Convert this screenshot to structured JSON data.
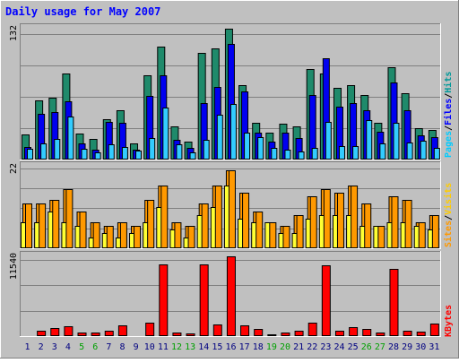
{
  "chart_data": [
    {
      "type": "bar",
      "panel": "hits-files-pages",
      "title": "Daily usage for May 2007",
      "ymax_label": "132",
      "ylim": [
        0,
        132
      ],
      "grid": true,
      "legend": [
        "Pages",
        "Files",
        "Hits"
      ],
      "categories": [
        "1",
        "2",
        "3",
        "4",
        "5",
        "6",
        "7",
        "8",
        "9",
        "10",
        "11",
        "12",
        "13",
        "14",
        "15",
        "16",
        "17",
        "18",
        "19",
        "20",
        "21",
        "22",
        "23",
        "24",
        "25",
        "26",
        "27",
        "28",
        "29",
        "30",
        "31"
      ],
      "series": [
        {
          "name": "Hits",
          "color": "#1f8a6b",
          "values": [
            25,
            60,
            62,
            87,
            26,
            21,
            41,
            50,
            16,
            85,
            114,
            33,
            18,
            108,
            112,
            132,
            75,
            37,
            27,
            36,
            33,
            91,
            87,
            72,
            75,
            65,
            37,
            93,
            67,
            32,
            30
          ]
        },
        {
          "name": "Files",
          "color": "#0000f0",
          "values": [
            13,
            46,
            48,
            59,
            16,
            10,
            38,
            37,
            10,
            64,
            85,
            20,
            12,
            57,
            73,
            117,
            69,
            27,
            18,
            27,
            22,
            65,
            102,
            53,
            57,
            50,
            28,
            78,
            50,
            24,
            23
          ]
        },
        {
          "name": "Pages",
          "color": "#33ccff",
          "values": [
            11,
            16,
            21,
            43,
            11,
            7,
            15,
            13,
            9,
            22,
            52,
            15,
            7,
            20,
            45,
            56,
            27,
            23,
            12,
            10,
            8,
            12,
            38,
            14,
            14,
            40,
            16,
            37,
            17,
            19,
            12
          ]
        }
      ]
    },
    {
      "type": "bar",
      "panel": "visits-sites",
      "ymax_label": "22",
      "ylim": [
        0,
        22
      ],
      "grid": true,
      "legend": [
        "Sites",
        "Visits"
      ],
      "categories": [
        "1",
        "2",
        "3",
        "4",
        "5",
        "6",
        "7",
        "8",
        "9",
        "10",
        "11",
        "12",
        "13",
        "14",
        "15",
        "16",
        "17",
        "18",
        "19",
        "20",
        "21",
        "22",
        "23",
        "24",
        "25",
        "26",
        "27",
        "28",
        "29",
        "30",
        "31"
      ],
      "series": [
        {
          "name": "Visits",
          "color": "#ff9900",
          "values": [
            12,
            12,
            13,
            16,
            10,
            7,
            6,
            7,
            6,
            13,
            17,
            7,
            6,
            12,
            17,
            21,
            15,
            10,
            7,
            6,
            9,
            14,
            16,
            15,
            17,
            12,
            6,
            14,
            13,
            7,
            9
          ]
        },
        {
          "name": "Sites",
          "color": "#ffff33",
          "values": [
            7,
            7,
            10,
            7,
            6,
            3,
            4,
            3,
            4,
            7,
            11,
            5,
            3,
            9,
            11,
            17,
            8,
            7,
            7,
            4,
            4,
            8,
            9,
            9,
            9,
            6,
            6,
            7,
            7,
            6,
            5
          ]
        }
      ]
    },
    {
      "type": "bar",
      "panel": "kbytes",
      "ymax_label": "11540",
      "ylim": [
        0,
        11540
      ],
      "grid": true,
      "legend": [
        "KBytes"
      ],
      "categories": [
        "1",
        "2",
        "3",
        "4",
        "5",
        "6",
        "7",
        "8",
        "9",
        "10",
        "11",
        "12",
        "13",
        "14",
        "15",
        "16",
        "17",
        "18",
        "19",
        "20",
        "21",
        "22",
        "23",
        "24",
        "25",
        "26",
        "27",
        "28",
        "29",
        "30",
        "31"
      ],
      "series": [
        {
          "name": "KBytes",
          "color": "#ff0000",
          "values": [
            150,
            760,
            1200,
            1400,
            470,
            550,
            800,
            1570,
            150,
            2000,
            10400,
            490,
            380,
            10340,
            1640,
            11540,
            1570,
            1030,
            300,
            480,
            770,
            1920,
            10300,
            800,
            1330,
            1010,
            470,
            9730,
            790,
            700,
            1840
          ]
        }
      ]
    }
  ],
  "x_axis": {
    "days": [
      "1",
      "2",
      "3",
      "4",
      "5",
      "6",
      "7",
      "8",
      "9",
      "10",
      "11",
      "12",
      "13",
      "14",
      "15",
      "16",
      "17",
      "18",
      "19",
      "20",
      "21",
      "22",
      "23",
      "24",
      "25",
      "26",
      "27",
      "28",
      "29",
      "30",
      "31"
    ],
    "weekend_days": [
      "5",
      "6",
      "12",
      "13",
      "19",
      "20",
      "26",
      "27"
    ],
    "weekday_color": "#000080",
    "weekend_color": "#00a000"
  },
  "legend_colors": {
    "Pages": "#00ccff",
    "Files": "#0000ff",
    "Hits": "#009999",
    "Sites": "#ff9900",
    "Visits": "#ffcc00",
    "KBytes": "#ff0000",
    "separator": "#000000"
  },
  "colors": {
    "background": "#c0c0c0",
    "panel_bg": "#c0c0c0",
    "title": "#0000ff",
    "gridline": "#808080"
  }
}
